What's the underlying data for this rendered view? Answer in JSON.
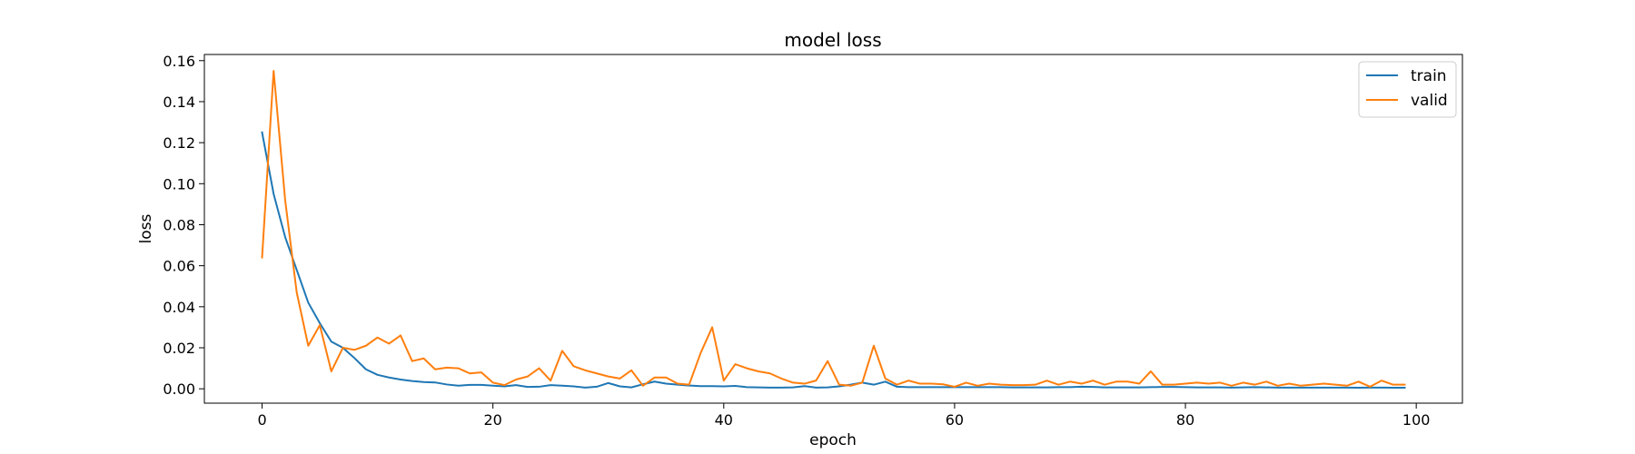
{
  "chart_data": {
    "type": "line",
    "title": "model loss",
    "xlabel": "epoch",
    "ylabel": "loss",
    "xlim": [
      -5,
      104
    ],
    "ylim": [
      -0.007,
      0.163
    ],
    "xticks": [
      0,
      20,
      40,
      60,
      80,
      100
    ],
    "yticks": [
      0.0,
      0.02,
      0.04,
      0.06,
      0.08,
      0.1,
      0.12,
      0.14,
      0.16
    ],
    "ytick_labels": [
      "0.00",
      "0.02",
      "0.04",
      "0.06",
      "0.08",
      "0.10",
      "0.12",
      "0.14",
      "0.16"
    ],
    "grid": false,
    "legend_position": "top-right",
    "colors": {
      "train": "#1f77b4",
      "valid": "#ff7f0e"
    },
    "series": [
      {
        "name": "train",
        "x": [
          0,
          1,
          2,
          3,
          4,
          5,
          6,
          7,
          8,
          9,
          10,
          11,
          12,
          13,
          14,
          15,
          16,
          17,
          18,
          19,
          20,
          21,
          22,
          23,
          24,
          25,
          26,
          27,
          28,
          29,
          30,
          31,
          32,
          33,
          34,
          35,
          36,
          37,
          38,
          39,
          40,
          41,
          42,
          43,
          44,
          45,
          46,
          47,
          48,
          49,
          50,
          51,
          52,
          53,
          54,
          55,
          56,
          57,
          58,
          59,
          60,
          61,
          62,
          63,
          64,
          65,
          66,
          67,
          68,
          69,
          70,
          71,
          72,
          73,
          74,
          75,
          76,
          77,
          78,
          79,
          80,
          81,
          82,
          83,
          84,
          85,
          86,
          87,
          88,
          89,
          90,
          91,
          92,
          93,
          94,
          95,
          96,
          97,
          98,
          99
        ],
        "values": [
          0.125,
          0.095,
          0.074,
          0.058,
          0.042,
          0.032,
          0.023,
          0.02,
          0.015,
          0.0095,
          0.0068,
          0.0055,
          0.0045,
          0.0038,
          0.0033,
          0.0031,
          0.0021,
          0.0015,
          0.0019,
          0.0019,
          0.0015,
          0.0012,
          0.0018,
          0.0009,
          0.001,
          0.0018,
          0.0015,
          0.0012,
          0.0006,
          0.001,
          0.0028,
          0.0012,
          0.0007,
          0.0022,
          0.0035,
          0.0025,
          0.002,
          0.0016,
          0.0013,
          0.0013,
          0.0012,
          0.0014,
          0.0008,
          0.0007,
          0.0006,
          0.0006,
          0.0007,
          0.0013,
          0.0006,
          0.0007,
          0.0012,
          0.002,
          0.003,
          0.002,
          0.0035,
          0.001,
          0.0008,
          0.0008,
          0.0008,
          0.0008,
          0.0008,
          0.0008,
          0.0008,
          0.0008,
          0.0008,
          0.0007,
          0.0007,
          0.0007,
          0.0007,
          0.0008,
          0.0008,
          0.001,
          0.0009,
          0.0007,
          0.0007,
          0.0007,
          0.0007,
          0.0008,
          0.0009,
          0.0009,
          0.0008,
          0.0007,
          0.0007,
          0.0007,
          0.0006,
          0.0007,
          0.0008,
          0.0007,
          0.0006,
          0.0006,
          0.0006,
          0.0006,
          0.0006,
          0.0006,
          0.0006,
          0.0005,
          0.0006,
          0.0006,
          0.0005,
          0.0005
        ]
      },
      {
        "name": "valid",
        "x": [
          0,
          1,
          2,
          3,
          4,
          5,
          6,
          7,
          8,
          9,
          10,
          11,
          12,
          13,
          14,
          15,
          16,
          17,
          18,
          19,
          20,
          21,
          22,
          23,
          24,
          25,
          26,
          27,
          28,
          29,
          30,
          31,
          32,
          33,
          34,
          35,
          36,
          37,
          38,
          39,
          40,
          41,
          42,
          43,
          44,
          45,
          46,
          47,
          48,
          49,
          50,
          51,
          52,
          53,
          54,
          55,
          56,
          57,
          58,
          59,
          60,
          61,
          62,
          63,
          64,
          65,
          66,
          67,
          68,
          69,
          70,
          71,
          72,
          73,
          74,
          75,
          76,
          77,
          78,
          79,
          80,
          81,
          82,
          83,
          84,
          85,
          86,
          87,
          88,
          89,
          90,
          91,
          92,
          93,
          94,
          95,
          96,
          97,
          98,
          99
        ],
        "values": [
          0.064,
          0.155,
          0.092,
          0.047,
          0.021,
          0.031,
          0.0085,
          0.02,
          0.019,
          0.021,
          0.025,
          0.022,
          0.026,
          0.0135,
          0.0148,
          0.0095,
          0.0103,
          0.01,
          0.0075,
          0.008,
          0.003,
          0.0018,
          0.0045,
          0.006,
          0.01,
          0.004,
          0.0185,
          0.011,
          0.009,
          0.0075,
          0.006,
          0.005,
          0.009,
          0.0015,
          0.0055,
          0.0055,
          0.0025,
          0.002,
          0.0175,
          0.03,
          0.004,
          0.012,
          0.01,
          0.0085,
          0.0075,
          0.005,
          0.003,
          0.0025,
          0.004,
          0.0135,
          0.002,
          0.0015,
          0.003,
          0.021,
          0.005,
          0.002,
          0.004,
          0.0025,
          0.0025,
          0.0022,
          0.001,
          0.003,
          0.0015,
          0.0025,
          0.002,
          0.0018,
          0.0018,
          0.002,
          0.004,
          0.002,
          0.0035,
          0.0025,
          0.004,
          0.002,
          0.0035,
          0.0035,
          0.0025,
          0.0085,
          0.002,
          0.002,
          0.0025,
          0.003,
          0.0025,
          0.003,
          0.0015,
          0.003,
          0.002,
          0.0035,
          0.0015,
          0.0025,
          0.0015,
          0.002,
          0.0025,
          0.002,
          0.0015,
          0.0035,
          0.001,
          0.004,
          0.002,
          0.002
        ]
      }
    ]
  }
}
